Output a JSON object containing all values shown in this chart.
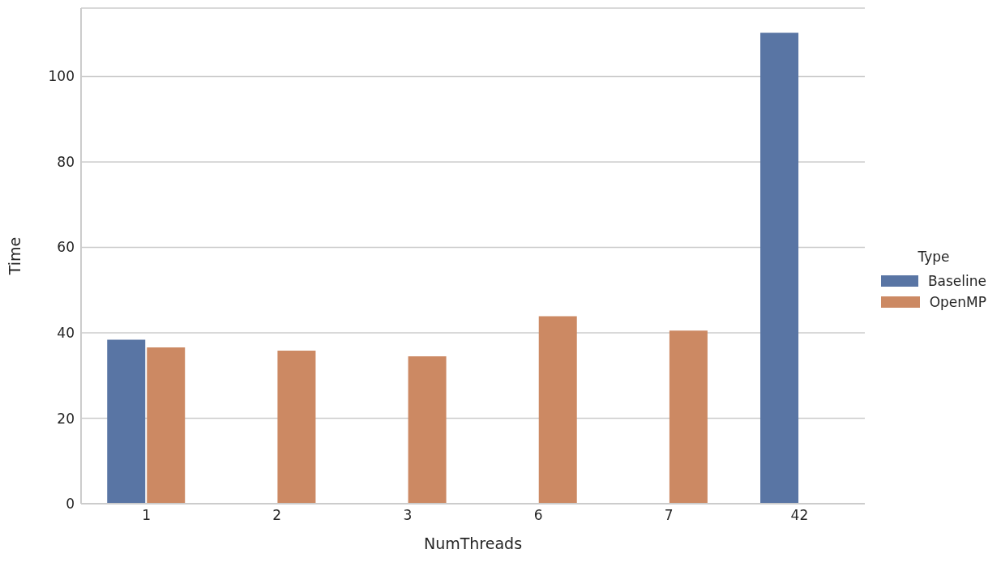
{
  "chart_data": {
    "type": "bar",
    "xlabel": "NumThreads",
    "ylabel": "Time",
    "legend_title": "Type",
    "categories": [
      "1",
      "2",
      "3",
      "6",
      "7",
      "42"
    ],
    "series": [
      {
        "name": "Baseline",
        "color": "#5975a4",
        "values": [
          38.4,
          null,
          null,
          null,
          null,
          110.2
        ]
      },
      {
        "name": "OpenMP",
        "color": "#cc8963",
        "values": [
          36.6,
          35.8,
          34.5,
          43.9,
          40.5,
          null
        ]
      }
    ],
    "ylim": [
      0,
      116
    ],
    "yticks": [
      0,
      20,
      40,
      60,
      80,
      100
    ],
    "grid": "y",
    "legend": "right"
  }
}
